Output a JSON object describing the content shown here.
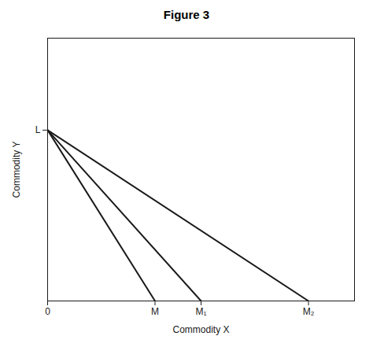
{
  "chart_data": {
    "type": "line",
    "title": "Figure 3",
    "xlabel": "Commodity X",
    "ylabel": "Commodity Y",
    "color": "#1a1a1a",
    "series": [
      {
        "x": [
          0,
          3.5
        ],
        "values": [
          6.5,
          0
        ]
      },
      {
        "x": [
          0,
          5.0
        ],
        "values": [
          6.5,
          0
        ]
      },
      {
        "x": [
          0,
          8.5
        ],
        "values": [
          6.5,
          0
        ]
      }
    ],
    "xlim": [
      0,
      10.0
    ],
    "ylim": [
      0,
      10.0
    ],
    "xticks": [
      0,
      {
        "value": 3.5,
        "label": "M"
      },
      {
        "value": 5.0,
        "label": "M₁"
      },
      {
        "value": 8.5,
        "label": "M₂"
      }
    ],
    "yticks": [
      {
        "value": 6.5,
        "label": "L"
      }
    ],
    "grid": false
  }
}
